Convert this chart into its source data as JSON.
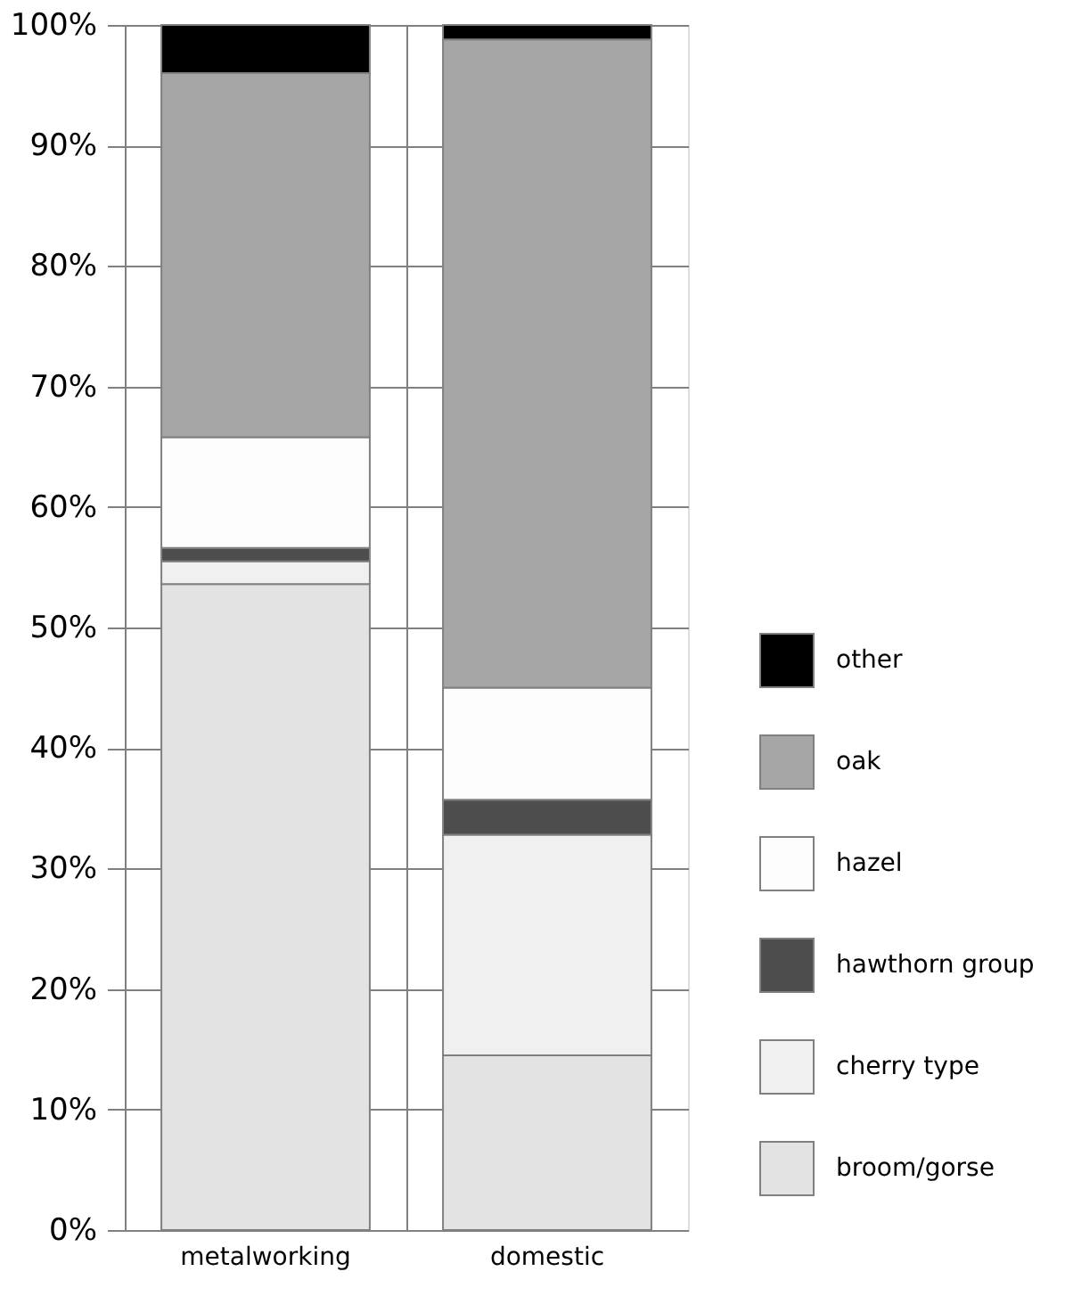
{
  "chart_data": {
    "type": "bar",
    "stacked": true,
    "categories": [
      "metalworking",
      "domestic"
    ],
    "series": [
      {
        "name": "broom/gorse",
        "color": "#e3e3e3",
        "values": [
          53.6,
          14.5
        ]
      },
      {
        "name": "cherry type",
        "color": "#f0f0f0",
        "values": [
          1.9,
          18.3
        ]
      },
      {
        "name": "hawthorn group",
        "color": "#4d4d4d",
        "values": [
          1.1,
          2.9
        ]
      },
      {
        "name": "hazel",
        "color": "#fdfdfd",
        "values": [
          9.2,
          9.3
        ]
      },
      {
        "name": "oak",
        "color": "#a6a6a6",
        "values": [
          30.2,
          53.8
        ]
      },
      {
        "name": "other",
        "color": "#000000",
        "values": [
          4.0,
          1.2
        ]
      }
    ],
    "ylim": [
      0,
      100
    ],
    "yticks": [
      {
        "value": 0,
        "label": "0%"
      },
      {
        "value": 10,
        "label": "10%"
      },
      {
        "value": 20,
        "label": "20%"
      },
      {
        "value": 30,
        "label": "30%"
      },
      {
        "value": 40,
        "label": "40%"
      },
      {
        "value": 50,
        "label": "50%"
      },
      {
        "value": 60,
        "label": "60%"
      },
      {
        "value": 70,
        "label": "70%"
      },
      {
        "value": 80,
        "label": "80%"
      },
      {
        "value": 90,
        "label": "90%"
      },
      {
        "value": 100,
        "label": "100%"
      }
    ],
    "grid": true,
    "legend": "bottom right"
  }
}
